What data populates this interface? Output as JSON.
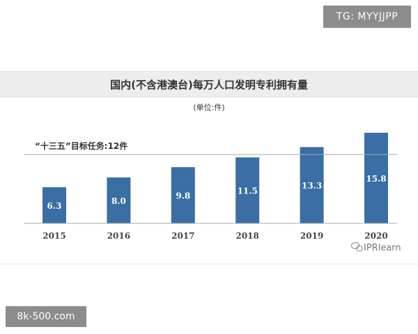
{
  "watermark_top": "TG: MYYJJPP",
  "watermark_bottom": "8k-500.com",
  "watermark_logo": "IPRlearn",
  "chart_data": {
    "type": "bar",
    "title": "国内(不含港澳台)每万人口发明专利拥有量",
    "subtitle": "(单位:件)",
    "categories": [
      "2015",
      "2016",
      "2017",
      "2018",
      "2019",
      "2020"
    ],
    "values": [
      6.3,
      8.0,
      9.8,
      11.5,
      13.3,
      15.8
    ],
    "value_labels": [
      "6.3",
      "8.0",
      "9.8",
      "11.5",
      "13.3",
      "15.8"
    ],
    "ylim": [
      0,
      16.5
    ],
    "reference_line": {
      "value": 12,
      "label": "“十三五”目标任务:12件"
    },
    "bar_color": "#3a6ea5",
    "grid": false,
    "legend": "none"
  }
}
